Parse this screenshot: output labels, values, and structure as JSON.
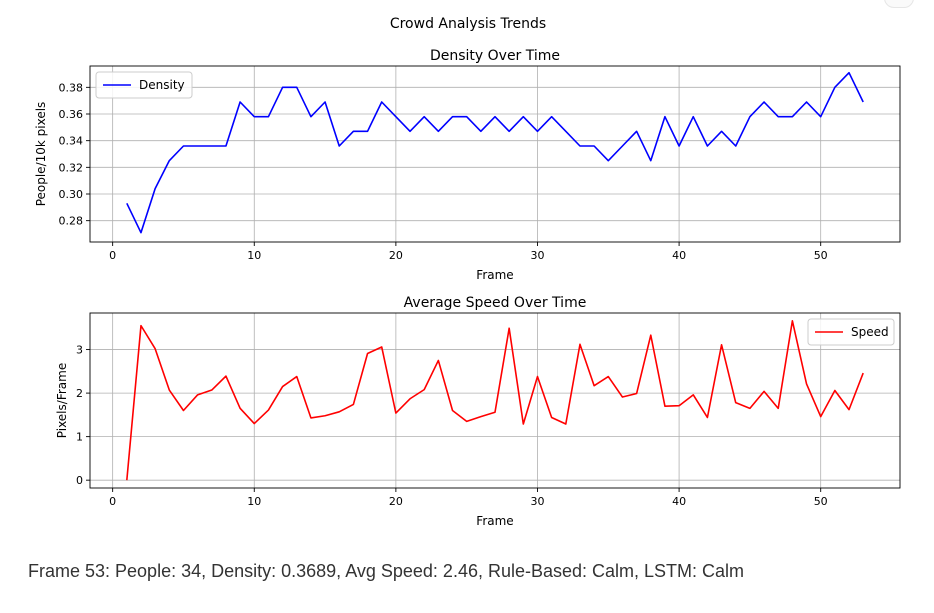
{
  "figure": {
    "suptitle": "Crowd Analysis Trends"
  },
  "status": {
    "text": "Frame 53: People: 34, Density: 0.3689, Avg Speed: 2.46, Rule-Based: Calm, LSTM: Calm"
  },
  "chart_data": [
    {
      "type": "line",
      "title": "Density Over Time",
      "xlabel": "Frame",
      "ylabel": "People/10k pixels",
      "xlim": [
        -1.6,
        55.6
      ],
      "ylim": [
        0.264,
        0.396
      ],
      "xticks": [
        0,
        10,
        20,
        30,
        40,
        50
      ],
      "yticks": [
        0.28,
        0.3,
        0.32,
        0.34,
        0.36,
        0.38
      ],
      "ytick_labels": [
        "0.28",
        "0.30",
        "0.32",
        "0.34",
        "0.36",
        "0.38"
      ],
      "grid": true,
      "legend": "upper left",
      "x": [
        1,
        2,
        3,
        4,
        5,
        6,
        7,
        8,
        9,
        10,
        11,
        12,
        13,
        14,
        15,
        16,
        17,
        18,
        19,
        20,
        21,
        22,
        23,
        24,
        25,
        26,
        27,
        28,
        29,
        30,
        31,
        32,
        33,
        34,
        35,
        36,
        37,
        38,
        39,
        40,
        41,
        42,
        43,
        44,
        45,
        46,
        47,
        48,
        49,
        50,
        51,
        52,
        53
      ],
      "series": [
        {
          "name": "Density",
          "color": "#0000ff",
          "values": [
            0.293,
            0.271,
            0.304,
            0.325,
            0.336,
            0.336,
            0.336,
            0.336,
            0.369,
            0.358,
            0.358,
            0.38,
            0.38,
            0.358,
            0.369,
            0.336,
            0.347,
            0.347,
            0.369,
            0.358,
            0.347,
            0.358,
            0.347,
            0.358,
            0.358,
            0.347,
            0.358,
            0.347,
            0.358,
            0.347,
            0.358,
            0.347,
            0.336,
            0.336,
            0.325,
            0.336,
            0.347,
            0.325,
            0.358,
            0.336,
            0.358,
            0.336,
            0.347,
            0.336,
            0.358,
            0.369,
            0.358,
            0.358,
            0.369,
            0.358,
            0.38,
            0.391,
            0.369
          ]
        }
      ]
    },
    {
      "type": "line",
      "title": "Average Speed Over Time",
      "xlabel": "Frame",
      "ylabel": "Pixels/Frame",
      "xlim": [
        -1.6,
        55.6
      ],
      "ylim": [
        -0.18,
        3.84
      ],
      "xticks": [
        0,
        10,
        20,
        30,
        40,
        50
      ],
      "yticks": [
        0,
        1,
        2,
        3
      ],
      "ytick_labels": [
        "0",
        "1",
        "2",
        "3"
      ],
      "grid": true,
      "legend": "upper right",
      "x": [
        1,
        2,
        3,
        4,
        5,
        6,
        7,
        8,
        9,
        10,
        11,
        12,
        13,
        14,
        15,
        16,
        17,
        18,
        19,
        20,
        21,
        22,
        23,
        24,
        25,
        26,
        27,
        28,
        29,
        30,
        31,
        32,
        33,
        34,
        35,
        36,
        37,
        38,
        39,
        40,
        41,
        42,
        43,
        44,
        45,
        46,
        47,
        48,
        49,
        50,
        51,
        52,
        53
      ],
      "series": [
        {
          "name": "Speed",
          "color": "#ff0000",
          "values": [
            0.0,
            3.55,
            3.02,
            2.07,
            1.6,
            1.96,
            2.07,
            2.39,
            1.65,
            1.3,
            1.61,
            2.15,
            2.38,
            1.43,
            1.48,
            1.57,
            1.74,
            2.91,
            3.06,
            1.54,
            1.87,
            2.08,
            2.75,
            1.6,
            1.35,
            1.46,
            1.56,
            3.49,
            1.29,
            2.38,
            1.44,
            1.29,
            3.12,
            2.17,
            2.38,
            1.91,
            1.99,
            3.33,
            1.7,
            1.71,
            1.96,
            1.44,
            3.11,
            1.78,
            1.65,
            2.04,
            1.65,
            3.66,
            2.21,
            1.46,
            2.06,
            1.62,
            2.46
          ]
        }
      ]
    }
  ]
}
